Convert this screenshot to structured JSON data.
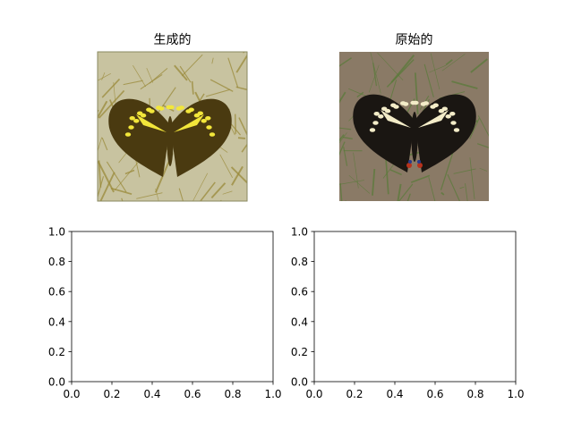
{
  "figure": {
    "images": [
      {
        "title": "生成的",
        "description": "synthesized butterfly, yellow-green tint",
        "palette": {
          "background": "#c8c3a0",
          "grass": "#9a8a3a",
          "wing": "#4a3a10",
          "spots": "#f2e63a",
          "border": "#8a8a60"
        }
      },
      {
        "title": "原始的",
        "description": "original butterfly photograph",
        "palette": {
          "background": "#8a7a66",
          "grass": "#5a7a3a",
          "wing": "#1a1612",
          "spots": "#f3ecc8",
          "accent_red": "#b8321c",
          "accent_blue": "#2a3a8a"
        }
      }
    ]
  },
  "chart_data": [
    {
      "type": "scatter",
      "title": "",
      "xlabel": "",
      "ylabel": "",
      "series": [],
      "xlim": [
        0.0,
        1.0
      ],
      "ylim": [
        0.0,
        1.0
      ],
      "xticks": [
        "0.0",
        "0.2",
        "0.4",
        "0.6",
        "0.8",
        "1.0"
      ],
      "yticks": [
        "0.0",
        "0.2",
        "0.4",
        "0.6",
        "0.8",
        "1.0"
      ],
      "grid": false
    },
    {
      "type": "scatter",
      "title": "",
      "xlabel": "",
      "ylabel": "",
      "series": [],
      "xlim": [
        0.0,
        1.0
      ],
      "ylim": [
        0.0,
        1.0
      ],
      "xticks": [
        "0.0",
        "0.2",
        "0.4",
        "0.6",
        "0.8",
        "1.0"
      ],
      "yticks": [
        "0.0",
        "0.2",
        "0.4",
        "0.6",
        "0.8",
        "1.0"
      ],
      "grid": false
    }
  ]
}
